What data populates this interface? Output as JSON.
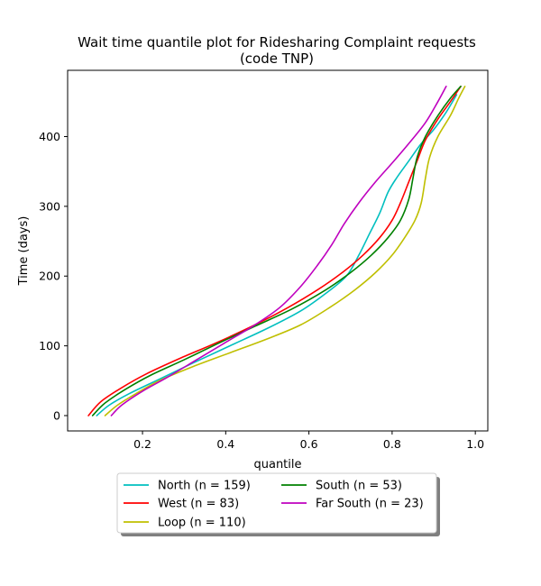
{
  "chart_data": {
    "type": "line",
    "title_line1": "Wait time quantile plot for Ridesharing Complaint  requests",
    "title_line2": "(code TNP)",
    "xlabel": "quantile",
    "ylabel": "Time (days)",
    "xlim": [
      0.02,
      1.03
    ],
    "ylim": [
      -22,
      495
    ],
    "xticks": [
      0.2,
      0.4,
      0.6,
      0.8,
      1.0
    ],
    "xtick_labels": [
      "0.2",
      "0.4",
      "0.6",
      "0.8",
      "1.0"
    ],
    "yticks": [
      0,
      100,
      200,
      300,
      400
    ],
    "ytick_labels": [
      "0",
      "100",
      "200",
      "300",
      "400"
    ],
    "grid": false,
    "legend_placement": "bottom-center, below plot",
    "series": [
      {
        "name": "North (n = 159)",
        "color": "#00bfbf",
        "x": [
          0.09,
          0.12,
          0.17,
          0.24,
          0.32,
          0.41,
          0.5,
          0.58,
          0.64,
          0.69,
          0.72,
          0.745,
          0.77,
          0.79,
          0.81,
          0.84,
          0.87,
          0.9,
          0.93,
          0.955
        ],
        "y": [
          0,
          15,
          32,
          52,
          75,
          100,
          125,
          150,
          175,
          200,
          230,
          260,
          290,
          320,
          340,
          365,
          390,
          410,
          435,
          460
        ]
      },
      {
        "name": "West (n = 83)",
        "color": "#ff0000",
        "x": [
          0.07,
          0.1,
          0.15,
          0.21,
          0.29,
          0.38,
          0.47,
          0.55,
          0.62,
          0.68,
          0.73,
          0.77,
          0.8,
          0.82,
          0.84,
          0.86,
          0.88,
          0.91,
          0.94,
          0.965
        ],
        "y": [
          0,
          20,
          40,
          60,
          82,
          105,
          130,
          155,
          180,
          205,
          230,
          255,
          280,
          305,
          335,
          365,
          395,
          425,
          450,
          472
        ]
      },
      {
        "name": "Loop (n = 110)",
        "color": "#bfbf00",
        "x": [
          0.11,
          0.14,
          0.18,
          0.24,
          0.32,
          0.41,
          0.5,
          0.58,
          0.65,
          0.71,
          0.76,
          0.8,
          0.83,
          0.855,
          0.87,
          0.88,
          0.89,
          0.91,
          0.94,
          0.96,
          0.975
        ],
        "y": [
          0,
          15,
          30,
          50,
          70,
          90,
          110,
          130,
          155,
          180,
          205,
          230,
          255,
          280,
          305,
          340,
          370,
          400,
          430,
          455,
          472
        ]
      },
      {
        "name": "South (n = 53)",
        "color": "#008000",
        "x": [
          0.08,
          0.11,
          0.16,
          0.22,
          0.3,
          0.38,
          0.47,
          0.56,
          0.64,
          0.7,
          0.75,
          0.79,
          0.82,
          0.84,
          0.85,
          0.86,
          0.88,
          0.91,
          0.94,
          0.965
        ],
        "y": [
          0,
          18,
          38,
          58,
          80,
          103,
          128,
          153,
          180,
          205,
          230,
          255,
          280,
          310,
          340,
          370,
          400,
          430,
          455,
          472
        ]
      },
      {
        "name": "Far South (n = 23)",
        "color": "#bf00bf",
        "x": [
          0.125,
          0.15,
          0.2,
          0.26,
          0.33,
          0.4,
          0.47,
          0.53,
          0.58,
          0.62,
          0.655,
          0.685,
          0.72,
          0.76,
          0.8,
          0.84,
          0.88,
          0.91,
          0.93
        ],
        "y": [
          0,
          15,
          35,
          55,
          80,
          105,
          130,
          155,
          185,
          215,
          245,
          275,
          305,
          335,
          362,
          390,
          420,
          450,
          472
        ]
      }
    ]
  }
}
